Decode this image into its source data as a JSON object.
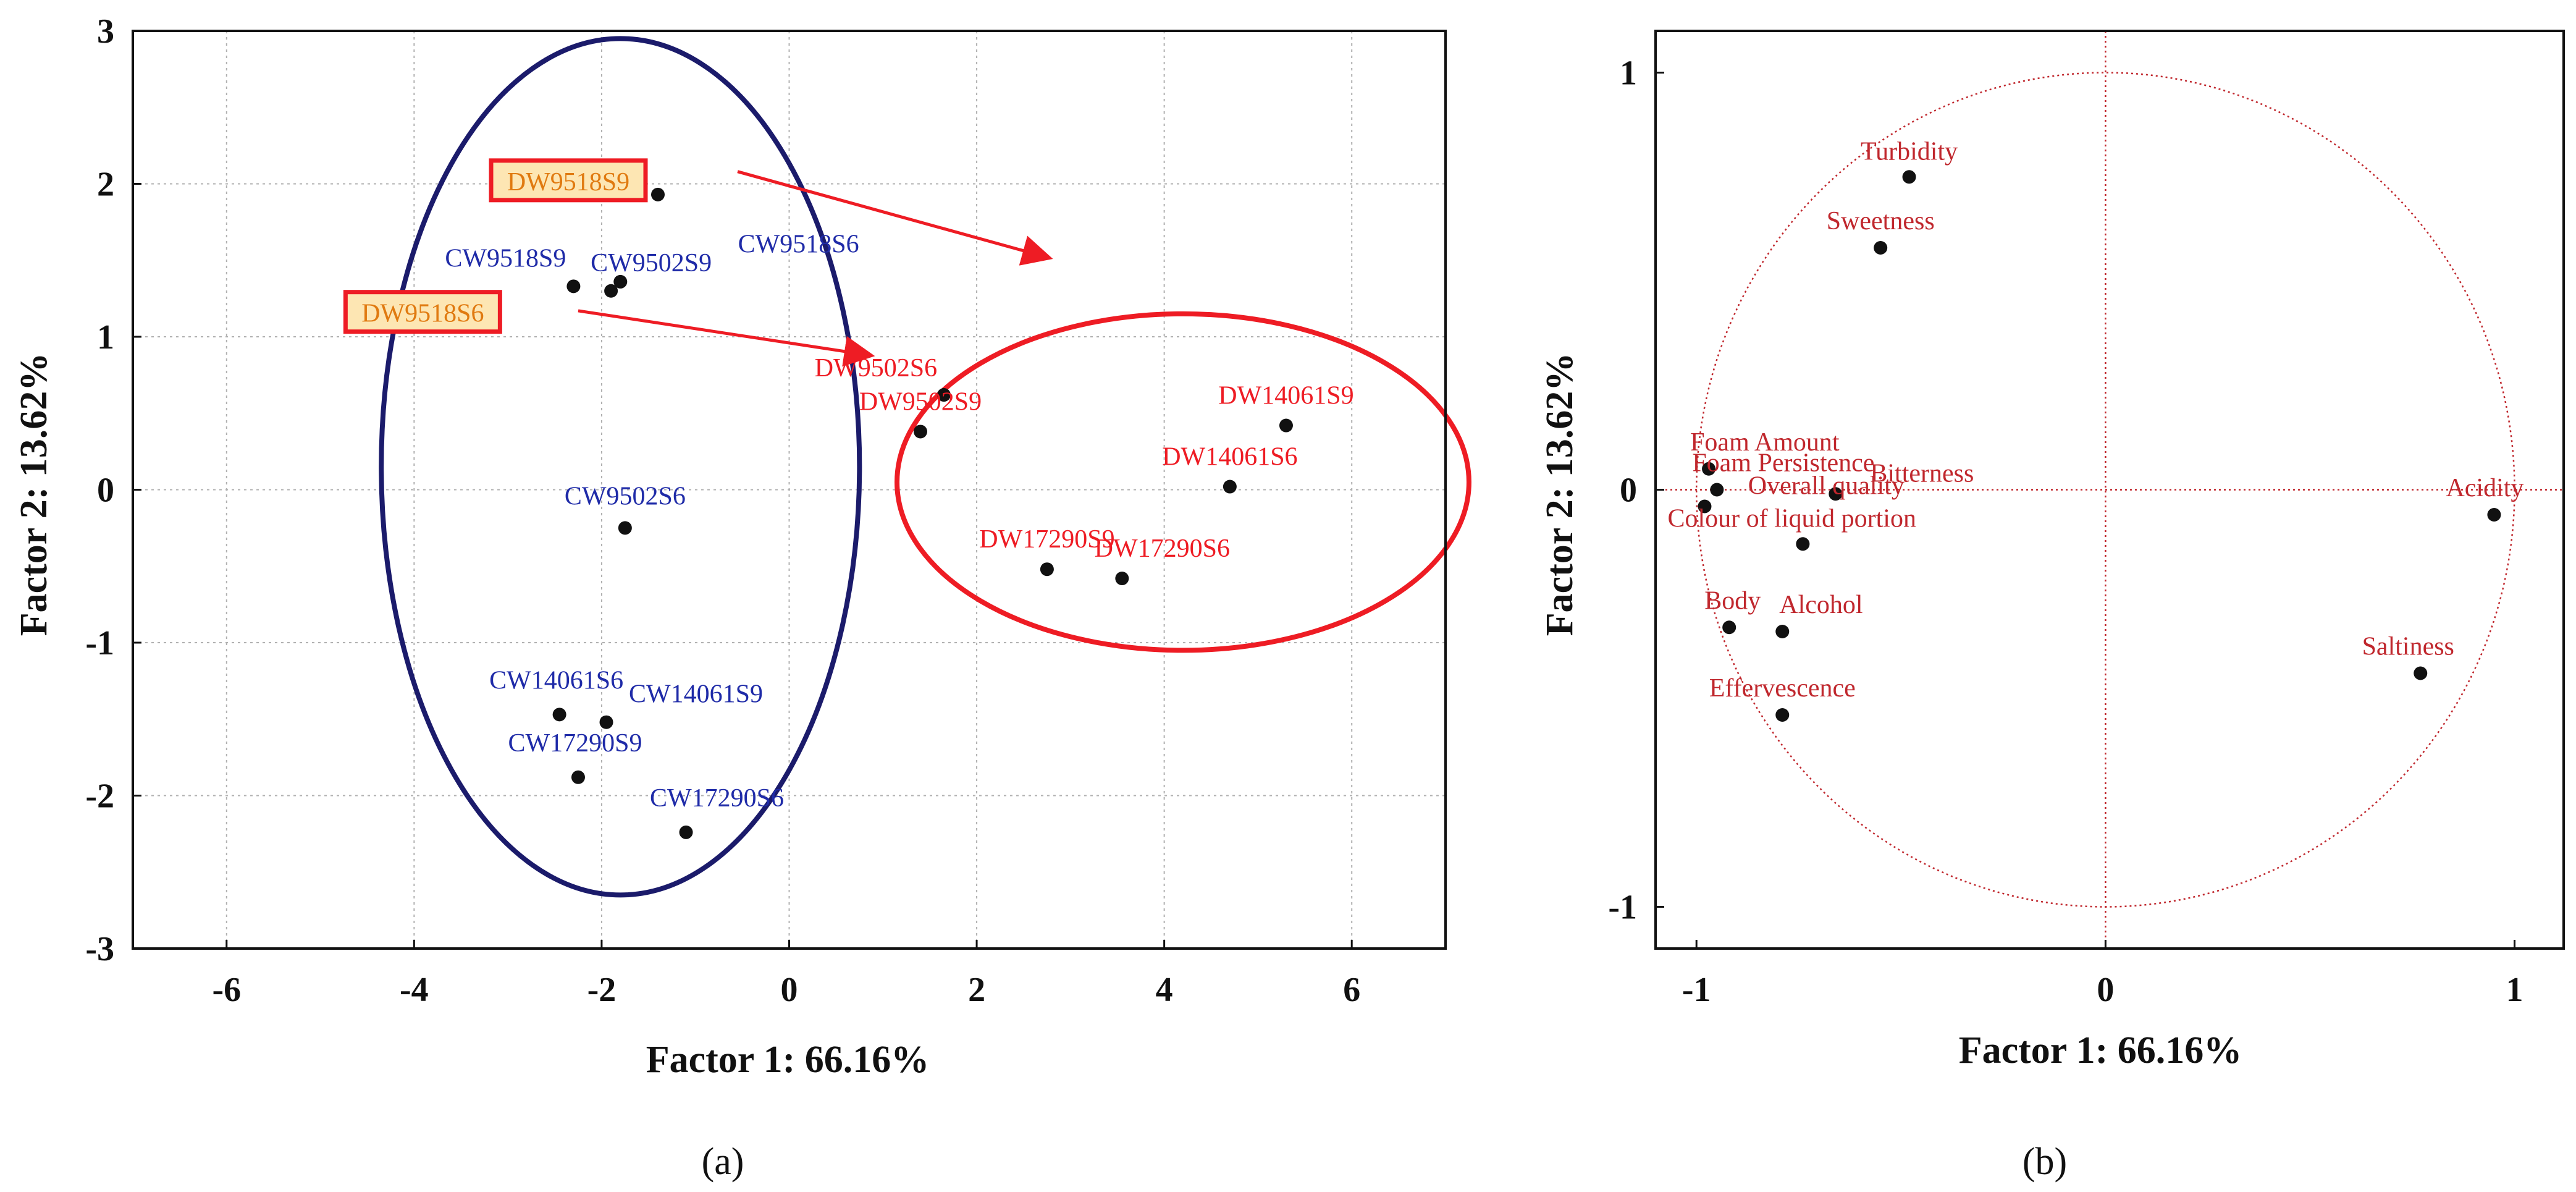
{
  "colors": {
    "cw": "#1f2ba8",
    "dw": "#ee1c24",
    "var": "#c0272d",
    "navy_ellipse": "#1b1b6b",
    "red_ellipse": "#ee1c24",
    "highlight_fill": "#fde6b3",
    "highlight_text": "#e07a10",
    "grid": "#b0b0b0"
  },
  "chart_data": [
    {
      "type": "scatter",
      "panel_label": "(a)",
      "xlabel": "Factor 1: 66.16%",
      "ylabel": "Factor 2: 13.62%",
      "xlim": [
        -7,
        7
      ],
      "ylim": [
        -3,
        3
      ],
      "xticks": [
        -6,
        -4,
        -2,
        0,
        2,
        4,
        6
      ],
      "yticks": [
        -3,
        -2,
        -1,
        0,
        1,
        2,
        3
      ],
      "grid": true,
      "points": [
        {
          "label": "DW9518S9",
          "x": -1.4,
          "y": 1.93,
          "group": "highlight"
        },
        {
          "label": "DW9518S6",
          "x": -3.15,
          "y": 1.07,
          "group": "highlight"
        },
        {
          "label": "CW9518S9",
          "x": -2.3,
          "y": 1.33,
          "group": "cw"
        },
        {
          "label": "CW9502S9",
          "x": -1.9,
          "y": 1.3,
          "group": "cw"
        },
        {
          "label": "",
          "x": -1.8,
          "y": 1.36,
          "group": "cw"
        },
        {
          "label": "CW9518S6",
          "x": 0.1,
          "y": 1.45,
          "group": "cw",
          "no_marker": true
        },
        {
          "label": "CW9502S6",
          "x": -1.75,
          "y": -0.25,
          "group": "cw"
        },
        {
          "label": "CW14061S6",
          "x": -2.45,
          "y": -1.47,
          "group": "cw"
        },
        {
          "label": "CW14061S9",
          "x": -1.95,
          "y": -1.52,
          "group": "cw"
        },
        {
          "label": "CW17290S9",
          "x": -2.25,
          "y": -1.88,
          "group": "cw"
        },
        {
          "label": "CW17290S6",
          "x": -1.1,
          "y": -2.24,
          "group": "cw"
        },
        {
          "label": "DW9502S6",
          "x": 1.65,
          "y": 0.62,
          "group": "dw"
        },
        {
          "label": "DW9502S9",
          "x": 1.4,
          "y": 0.38,
          "group": "dw"
        },
        {
          "label": "DW14061S9",
          "x": 5.3,
          "y": 0.42,
          "group": "dw"
        },
        {
          "label": "DW14061S6",
          "x": 4.7,
          "y": 0.02,
          "group": "dw"
        },
        {
          "label": "DW17290S9",
          "x": 2.75,
          "y": -0.52,
          "group": "dw"
        },
        {
          "label": "DW17290S6",
          "x": 3.55,
          "y": -0.58,
          "group": "dw"
        }
      ],
      "ellipses": [
        {
          "name": "cw-cluster",
          "cx": -1.8,
          "cy": 0.15,
          "rx": 2.55,
          "ry": 2.8,
          "color": "navy"
        },
        {
          "name": "dw-cluster",
          "cx": 4.2,
          "cy": 0.05,
          "rx": 3.05,
          "ry": 1.1,
          "color": "red"
        }
      ],
      "arrows": [
        {
          "from": [
            -0.55,
            2.08
          ],
          "to": [
            2.75,
            1.52
          ]
        },
        {
          "from": [
            -2.25,
            1.17
          ],
          "to": [
            0.85,
            0.88
          ]
        }
      ]
    },
    {
      "type": "scatter",
      "panel_label": "(b)",
      "xlabel": "Factor 1: 66.16%",
      "ylabel": "Factor 2: 13.62%",
      "xlim": [
        -1.1,
        1.12
      ],
      "ylim": [
        -1.1,
        1.1
      ],
      "xticks": [
        -1,
        0,
        1
      ],
      "yticks": [
        -1,
        0,
        1
      ],
      "grid": false,
      "unit_circle": true,
      "points": [
        {
          "label": "Turbidity",
          "x": -0.48,
          "y": 0.75
        },
        {
          "label": "Sweetness",
          "x": -0.55,
          "y": 0.58
        },
        {
          "label": "Foam Amount",
          "x": -0.97,
          "y": 0.05
        },
        {
          "label": "Foam Persistence",
          "x": -0.95,
          "y": 0.0
        },
        {
          "label": "Overall quality",
          "x": -0.66,
          "y": -0.01
        },
        {
          "label": "Bitterness",
          "x": -0.66,
          "y": -0.01,
          "no_marker": true
        },
        {
          "label": "Colour of liquid portion",
          "x": -0.98,
          "y": -0.04
        },
        {
          "label": "",
          "x": -0.74,
          "y": -0.13
        },
        {
          "label": "Body",
          "x": -0.92,
          "y": -0.33
        },
        {
          "label": "Alcohol",
          "x": -0.79,
          "y": -0.34
        },
        {
          "label": "Effervescence",
          "x": -0.79,
          "y": -0.54
        },
        {
          "label": "Acidity",
          "x": 0.95,
          "y": -0.06
        },
        {
          "label": "Saltiness",
          "x": 0.77,
          "y": -0.44
        }
      ]
    }
  ]
}
